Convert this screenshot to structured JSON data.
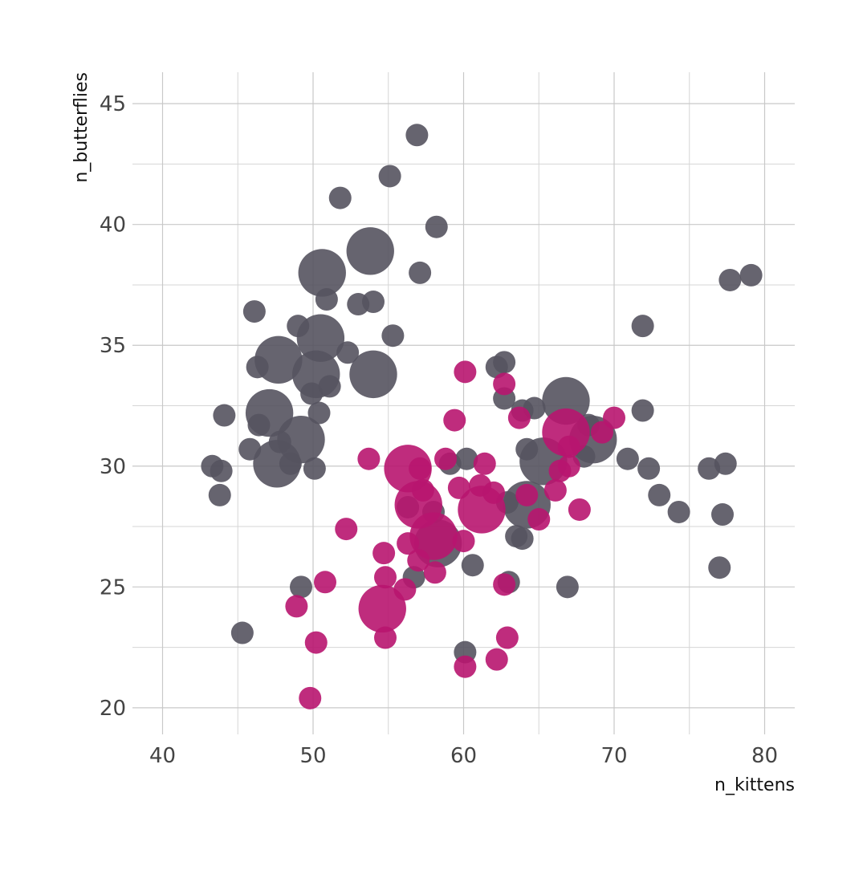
{
  "chart_data": {
    "type": "bubble",
    "x_label": "n_kittens",
    "y_label": "n_butterflies",
    "xlim": [
      38,
      82
    ],
    "ylim": [
      18.9,
      46.3
    ],
    "xticks": [
      40,
      50,
      60,
      70,
      80
    ],
    "yticks": [
      20,
      25,
      30,
      35,
      40,
      45
    ],
    "xminor": [
      45,
      55,
      65,
      75
    ],
    "yminor": [
      22.5,
      27.5,
      32.5,
      37.5,
      42.5
    ],
    "grid": true,
    "opacity": 0.9,
    "series": [
      {
        "color": "#55535f",
        "x": [
          56.9,
          55.1,
          51.8,
          58.2,
          50.6,
          53.8,
          57.1,
          50.9,
          53.0,
          54.0,
          46.1,
          49.0,
          55.3,
          50.5,
          47.7,
          54.0,
          50.2,
          52.3,
          46.3,
          51.1,
          49.9,
          44.1,
          50.4,
          47.1,
          46.4,
          49.2,
          47.8,
          45.8,
          43.3,
          43.9,
          47.6,
          48.5,
          50.1,
          43.8,
          62.7,
          62.2,
          62.7,
          63.9,
          64.7,
          66.8,
          68.3,
          68.6,
          64.2,
          60.2,
          59.1,
          65.3,
          68.0,
          70.9,
          72.3,
          73.0,
          74.3,
          71.9,
          71.9,
          77.7,
          79.1,
          76.3,
          77.4,
          77.2,
          77.0,
          66.9,
          64.2,
          62.9,
          63.5,
          63.9,
          63.0,
          60.6,
          58.3,
          58.0,
          56.3,
          56.7,
          49.2,
          45.3,
          60.1
        ],
        "y": [
          43.7,
          42.0,
          41.1,
          39.9,
          38.0,
          38.9,
          38.0,
          36.9,
          36.7,
          36.8,
          36.4,
          35.8,
          35.4,
          35.3,
          34.4,
          33.8,
          33.8,
          34.7,
          34.1,
          33.3,
          33.0,
          32.1,
          32.2,
          32.2,
          31.7,
          31.1,
          31.0,
          30.7,
          30.0,
          29.8,
          30.1,
          30.1,
          29.9,
          28.8,
          34.3,
          34.1,
          32.8,
          32.3,
          32.4,
          32.7,
          31.7,
          31.1,
          30.7,
          30.3,
          30.1,
          30.2,
          30.4,
          30.3,
          29.9,
          28.8,
          28.1,
          35.8,
          32.3,
          37.7,
          37.9,
          29.9,
          30.1,
          28.0,
          25.8,
          25.0,
          28.4,
          28.5,
          27.1,
          27.0,
          25.2,
          25.9,
          26.8,
          28.1,
          28.3,
          25.4,
          25.0,
          23.1,
          22.3
        ],
        "sizes": [
          1,
          1,
          1,
          1,
          4.5,
          4.5,
          1,
          1,
          1,
          1,
          1,
          1,
          1,
          4.5,
          4.5,
          4.5,
          4.5,
          1,
          1,
          1,
          1,
          1,
          1,
          4.5,
          1,
          4.5,
          1,
          1,
          1,
          1,
          4.5,
          1,
          1,
          1,
          1,
          1,
          1,
          1,
          1,
          4.5,
          1,
          4.5,
          1,
          1,
          1,
          4.5,
          1,
          1,
          1,
          1,
          1,
          1,
          1,
          1,
          1,
          1,
          1,
          1,
          1,
          1,
          4.5,
          1,
          1,
          1,
          1,
          1,
          4.5,
          1,
          1,
          1,
          1,
          1,
          1
        ]
      },
      {
        "color": "#b8156f",
        "x": [
          60.1,
          62.7,
          59.4,
          63.7,
          70.0,
          66.8,
          69.2,
          67.0,
          53.7,
          58.8,
          56.3,
          57.1,
          61.4,
          67.0,
          66.4,
          59.7,
          61.1,
          62.0,
          57.3,
          66.1,
          64.2,
          61.2,
          57.0,
          67.7,
          52.2,
          65.0,
          58.0,
          56.3,
          60.0,
          57.0,
          58.1,
          54.7,
          54.8,
          50.8,
          56.1,
          62.7,
          54.6,
          48.9,
          50.2,
          54.8,
          62.9,
          62.2,
          60.1,
          49.8
        ],
        "y": [
          33.9,
          33.4,
          31.9,
          32.0,
          32.0,
          31.4,
          31.4,
          30.8,
          30.3,
          30.3,
          29.9,
          29.9,
          30.1,
          30.0,
          29.8,
          29.1,
          29.2,
          28.9,
          29.0,
          29.0,
          28.8,
          28.2,
          28.4,
          28.2,
          27.4,
          27.8,
          27.1,
          26.8,
          26.9,
          26.1,
          25.6,
          26.4,
          25.4,
          25.2,
          24.9,
          25.1,
          24.1,
          24.2,
          22.7,
          22.9,
          22.9,
          22.0,
          21.7,
          20.4
        ],
        "sizes": [
          1,
          1,
          1,
          1,
          1,
          4.5,
          1,
          1,
          1,
          1,
          4.5,
          1,
          1,
          1,
          1,
          1,
          1,
          1,
          1,
          1,
          1,
          4.5,
          4.5,
          1,
          1,
          1,
          4.5,
          1,
          1,
          1,
          1,
          1,
          1,
          1,
          1,
          1,
          4.5,
          1,
          1,
          1,
          1,
          1,
          1,
          1
        ]
      }
    ]
  }
}
